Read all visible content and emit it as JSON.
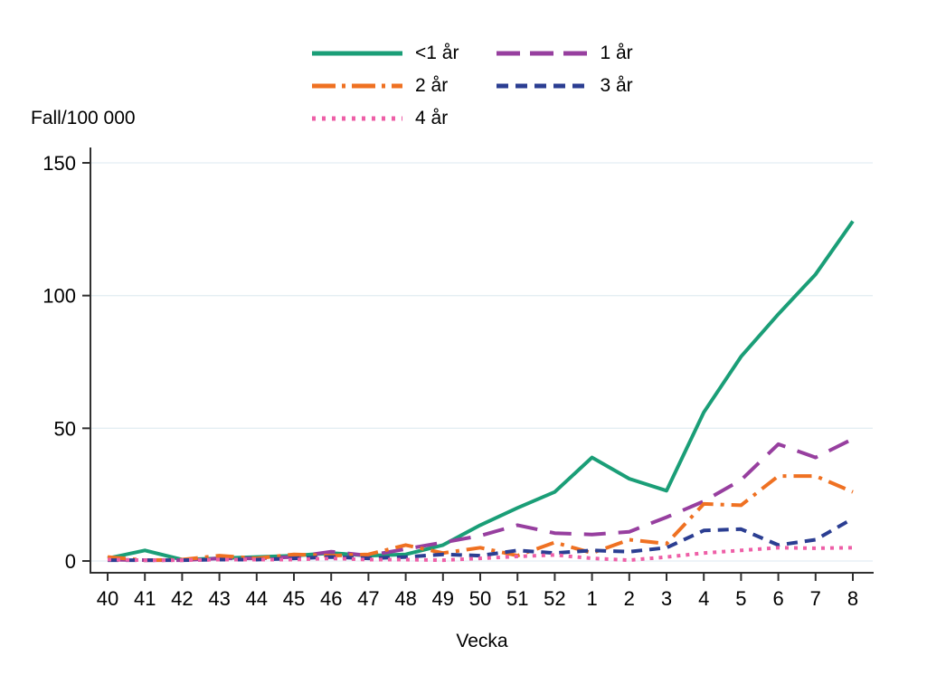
{
  "chart_data": {
    "type": "line",
    "title": "",
    "ylabel": "Fall/100 000",
    "xlabel": "Vecka",
    "x_tick_labels": [
      "40",
      "41",
      "42",
      "43",
      "44",
      "45",
      "46",
      "47",
      "48",
      "49",
      "50",
      "51",
      "52",
      "1",
      "2",
      "3",
      "4",
      "5",
      "6",
      "7",
      "8"
    ],
    "y_ticks": [
      0,
      50,
      100,
      150
    ],
    "ylim": [
      0,
      150
    ],
    "grid": "horizontal",
    "gridline_color": "#e4eef3",
    "axis_color": "#303030",
    "legend_position": "top-center",
    "series": [
      {
        "name": "<1 år",
        "color": "#1a9e77",
        "dash": "",
        "legend_dash": "",
        "values": [
          1,
          4,
          0.5,
          1,
          1.5,
          2,
          3,
          2,
          2.5,
          6,
          13.5,
          20,
          26,
          39,
          31,
          26.5,
          56,
          77,
          93,
          108,
          128
        ]
      },
      {
        "name": "1 år",
        "color": "#973f9f",
        "dash": "24 14",
        "legend_dash": "26 11",
        "values": [
          0.5,
          0.3,
          0.3,
          1,
          1,
          1.5,
          3.5,
          2,
          4.5,
          7,
          9.5,
          13.5,
          10.5,
          10,
          11,
          16.5,
          22.5,
          30.5,
          44,
          39,
          46
        ]
      },
      {
        "name": "2 år",
        "color": "#ef7122",
        "dash": "20 8 4 8",
        "legend_dash": "26 7 4 7",
        "values": [
          1.5,
          0.3,
          0.5,
          2,
          1,
          2.5,
          2,
          2.5,
          6,
          3,
          5,
          2,
          7,
          3,
          8,
          6.5,
          21.5,
          21,
          32,
          32,
          26
        ]
      },
      {
        "name": "3 år",
        "color": "#2b3e92",
        "dash": "12 8",
        "legend_dash": "13 8",
        "values": [
          0.3,
          0.3,
          0.3,
          0.5,
          0.5,
          1,
          1.5,
          1,
          1.5,
          2.5,
          2,
          4,
          3,
          4,
          3.5,
          5,
          11.5,
          12,
          6,
          8,
          16
        ]
      },
      {
        "name": "4 år",
        "color": "#ee5fa7",
        "dash": "4 6",
        "legend_dash": "4 7",
        "values": [
          0.5,
          0.3,
          0.3,
          0.5,
          0.5,
          0.5,
          1,
          0.5,
          0.5,
          0.3,
          1,
          1.7,
          2.3,
          1,
          0.3,
          1.5,
          3,
          4,
          5,
          4.8,
          5
        ]
      }
    ]
  }
}
